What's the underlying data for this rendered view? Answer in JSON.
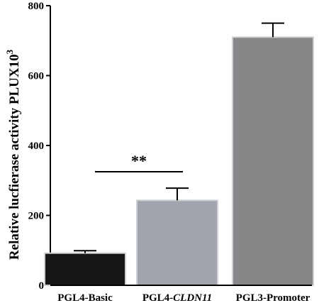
{
  "chart_data": {
    "type": "bar",
    "categories": [
      "PGL4-Basic",
      "PGL4-CLDN11",
      "PGL3-Promoter"
    ],
    "category_parts": [
      [
        {
          "text": "PGL4-Basic",
          "italic": false
        }
      ],
      [
        {
          "text": "PGL4-",
          "italic": false
        },
        {
          "text": "CLDN11",
          "italic": true
        }
      ],
      [
        {
          "text": "PGL3-Promoter",
          "italic": false
        }
      ]
    ],
    "values": [
      92,
      243,
      710
    ],
    "errors": [
      7,
      35,
      40
    ],
    "bar_colors": [
      "#151515",
      "#a3a5ae",
      "#858789"
    ],
    "ylim": [
      0,
      800
    ],
    "yticks": [
      0,
      200,
      400,
      600,
      800
    ],
    "ylabel_main": "Relative lucfierase activity PLUX10",
    "ylabel_sup": "3",
    "significance": {
      "text": "**",
      "between": [
        0,
        1
      ],
      "y": 333
    }
  }
}
